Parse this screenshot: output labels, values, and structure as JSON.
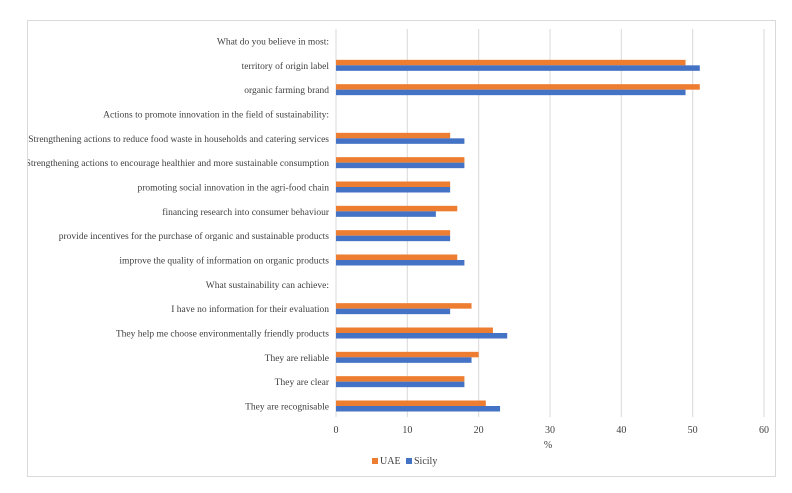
{
  "chart_data": {
    "type": "bar",
    "orientation": "horizontal",
    "categories": [
      "What do you believe in most:",
      "territory of origin label",
      "organic farming brand",
      "Actions to promote innovation in the field of sustainability:",
      "Strengthening actions to reduce food waste in households and catering services",
      "Strengthening actions to encourage healthier and more sustainable consumption",
      "promoting social innovation in the agri-food chain",
      "financing research into consumer behaviour",
      "provide incentives for the purchase of organic and sustainable products",
      "improve the quality of information on organic products",
      "What sustainability can achieve:",
      "I have no information for their evaluation",
      "They help me choose environmentally friendly products",
      "They are reliable",
      "They are clear",
      "They are recognisable"
    ],
    "series": [
      {
        "name": "UAE",
        "color": "#ED7D31",
        "values": [
          null,
          49,
          51,
          null,
          16,
          18,
          16,
          17,
          16,
          17,
          null,
          19,
          22,
          20,
          18,
          21
        ]
      },
      {
        "name": "Sicily",
        "color": "#4472C4",
        "values": [
          null,
          51,
          49,
          null,
          18,
          18,
          16,
          14,
          16,
          18,
          null,
          16,
          24,
          19,
          18,
          23
        ]
      }
    ],
    "xlabel": "%",
    "xlim": [
      0,
      60
    ],
    "xticks": [
      0,
      10,
      20,
      30,
      40,
      50,
      60
    ],
    "grid": true,
    "legend_position": "bottom"
  }
}
